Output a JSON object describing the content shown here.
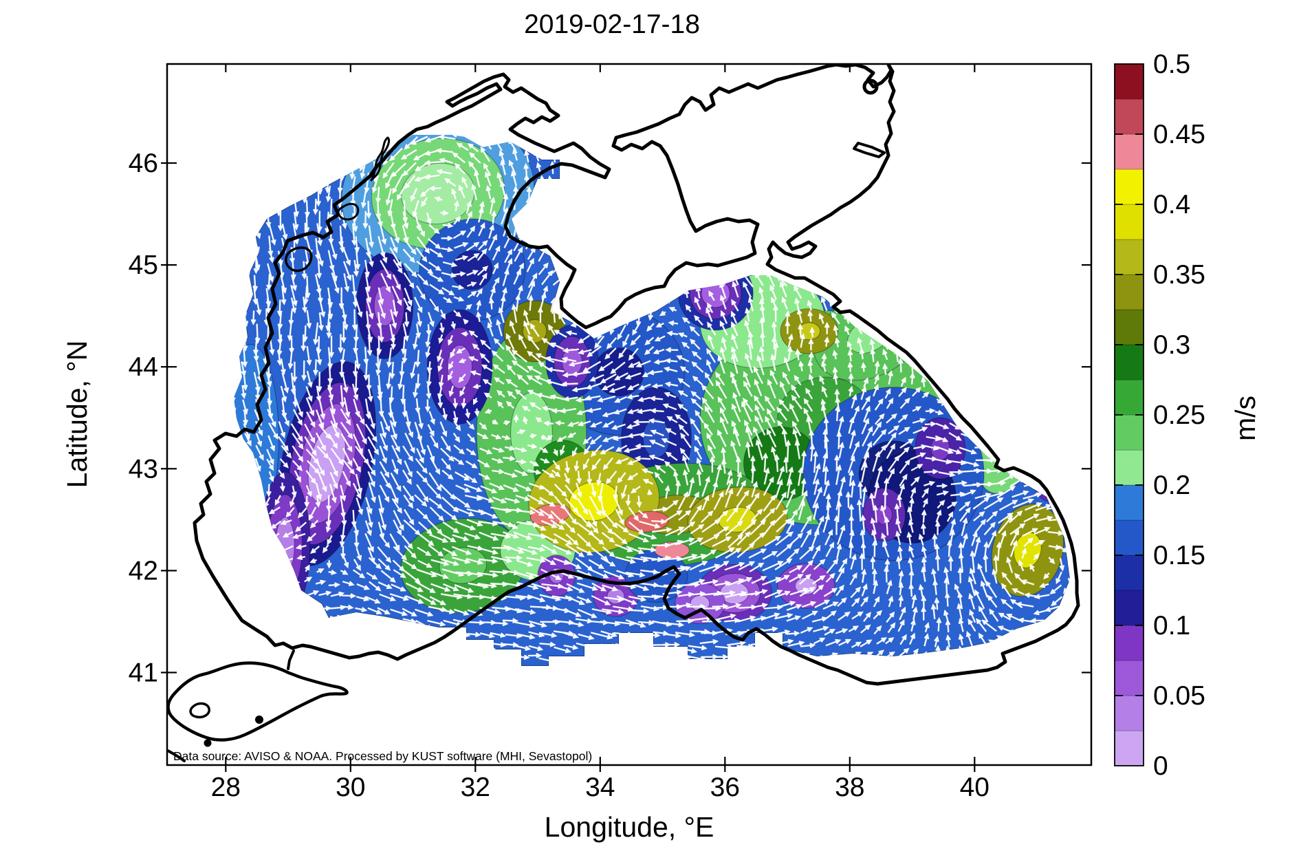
{
  "figure": {
    "title": "2019-02-17-18",
    "attribution": "Data source: AVISO & NOAA. Processed by KUST software (MHI, Sevastopol)"
  },
  "axes": {
    "x": {
      "label": "Longitude, °E",
      "ticks": [
        28,
        30,
        32,
        34,
        36,
        38,
        40
      ],
      "range": [
        27.06,
        41.87
      ]
    },
    "y": {
      "label": "Latitude, °N",
      "ticks": [
        41,
        42,
        43,
        44,
        45,
        46
      ],
      "range": [
        40.09,
        46.97
      ]
    }
  },
  "colorbar": {
    "unit": "m/s",
    "min": 0,
    "max": 0.5,
    "ticks": [
      0,
      0.05,
      0.1,
      0.15,
      0.2,
      0.25,
      0.3,
      0.35,
      0.4,
      0.45,
      0.5
    ],
    "segment_colors_bottom_to_top": [
      "#cda6f2",
      "#b57fe8",
      "#9e58da",
      "#7f36c4",
      "#221e98",
      "#1c2fa6",
      "#2458c8",
      "#2e7ad8",
      "#90e890",
      "#62cc62",
      "#36a836",
      "#157a15",
      "#5f7a08",
      "#8f9410",
      "#b4b818",
      "#e0e000",
      "#f2f200",
      "#ee8899",
      "#c04858",
      "#8c1020"
    ]
  },
  "chart_data": {
    "type": "heatmap",
    "subtype": "geographic-vector-field",
    "title": "2019-02-17-18",
    "region": "Black Sea",
    "field": "sea surface current speed",
    "unit": "m/s",
    "xlabel": "Longitude, °E",
    "ylabel": "Latitude, °N",
    "xlim": [
      27.06,
      41.87
    ],
    "ylim": [
      40.09,
      46.97
    ],
    "xticks": [
      28,
      30,
      32,
      34,
      36,
      38,
      40
    ],
    "yticks": [
      41,
      42,
      43,
      44,
      45,
      46
    ],
    "colorbar_range": [
      0,
      0.5
    ],
    "colorbar_ticks": [
      0,
      0.05,
      0.1,
      0.15,
      0.2,
      0.25,
      0.3,
      0.35,
      0.4,
      0.45,
      0.5
    ],
    "grid": false,
    "legend_position": "right-colorbar",
    "overlay": "dense white current-direction arrows (quiver) over filled speed contours",
    "no_data_regions": [
      "Sea of Azov",
      "narrow coastal margin",
      "Sea of Marmara"
    ],
    "base_speed_color": "#2a62cf",
    "speed_features": [
      {
        "lon": 31.4,
        "lat": 45.7,
        "rx": 1.55,
        "ry": 0.78,
        "rot": -10,
        "colors": [
          "#4f9fe0",
          "#77d877",
          "#a4eca4"
        ]
      },
      {
        "lon": 28.4,
        "lat": 43.3,
        "rx": 0.45,
        "ry": 0.92,
        "rot": 0,
        "colors": [
          "#2e7ad8"
        ]
      },
      {
        "lon": 31.95,
        "lat": 44.95,
        "rx": 0.85,
        "ry": 0.5,
        "rot": -15,
        "colors": [
          "#2458c8",
          "#1a2496"
        ]
      },
      {
        "lon": 34.3,
        "lat": 43.95,
        "rx": 1.05,
        "ry": 0.62,
        "rot": 0,
        "colors": [
          "#2458c8",
          "#161e8e"
        ]
      },
      {
        "lon": 34.9,
        "lat": 43.3,
        "rx": 0.56,
        "ry": 0.5,
        "rot": 0,
        "colors": [
          "#1a2496",
          "#2a52c4"
        ]
      },
      {
        "lon": 32.9,
        "lat": 43.35,
        "rx": 0.88,
        "ry": 1.05,
        "rot": 0,
        "colors": [
          "#59c259",
          "#8ce88c"
        ]
      },
      {
        "lon": 37.6,
        "lat": 43.5,
        "rx": 2.0,
        "ry": 1.05,
        "rot": -5,
        "colors": [
          "#59c259",
          "#3aa43a"
        ]
      },
      {
        "lon": 36.6,
        "lat": 44.45,
        "rx": 1.0,
        "ry": 0.46,
        "rot": -8,
        "colors": [
          "#8ce88c"
        ]
      },
      {
        "lon": 38.3,
        "lat": 44.3,
        "rx": 0.92,
        "ry": 0.4,
        "rot": -25,
        "colors": [
          "#59c259",
          "#8ce88c"
        ]
      },
      {
        "lon": 40.7,
        "lat": 43.5,
        "rx": 0.55,
        "ry": 0.78,
        "rot": 20,
        "colors": [
          "#77d877",
          "#a4eca4"
        ]
      },
      {
        "lon": 36.9,
        "lat": 43.05,
        "rx": 0.6,
        "ry": 0.36,
        "rot": 10,
        "colors": [
          "#157a15"
        ]
      },
      {
        "lon": 33.4,
        "lat": 42.98,
        "rx": 0.46,
        "ry": 0.3,
        "rot": 0,
        "colors": [
          "#1f8c1f"
        ]
      },
      {
        "lon": 38.7,
        "lat": 42.95,
        "rx": 1.45,
        "ry": 0.85,
        "rot": 0,
        "colors": [
          "#2458c8",
          "#14207e"
        ]
      },
      {
        "lon": 39.0,
        "lat": 42.72,
        "rx": 0.7,
        "ry": 0.45,
        "rot": 0,
        "colors": [
          "#10187a"
        ]
      },
      {
        "lon": 31.8,
        "lat": 42.05,
        "rx": 1.0,
        "ry": 0.46,
        "rot": -8,
        "colors": [
          "#3aa43a",
          "#62cc62"
        ]
      },
      {
        "lon": 33.0,
        "lat": 42.2,
        "rx": 0.6,
        "ry": 0.3,
        "rot": 0,
        "colors": [
          "#8ce88c"
        ]
      },
      {
        "lon": 35.2,
        "lat": 42.55,
        "rx": 1.5,
        "ry": 0.5,
        "rot": -5,
        "colors": [
          "#3aa43a",
          "#8f9410"
        ]
      },
      {
        "lon": 33.9,
        "lat": 42.68,
        "rx": 1.05,
        "ry": 0.5,
        "rot": -8,
        "colors": [
          "#b4b818",
          "#eeee00"
        ]
      },
      {
        "lon": 36.2,
        "lat": 42.5,
        "rx": 0.8,
        "ry": 0.32,
        "rot": -5,
        "colors": [
          "#9f9f14",
          "#dada10"
        ]
      },
      {
        "lon": 40.85,
        "lat": 42.2,
        "rx": 0.56,
        "ry": 0.46,
        "rot": 15,
        "colors": [
          "#8f9410",
          "#e3e300"
        ]
      },
      {
        "lon": 37.35,
        "lat": 44.35,
        "rx": 0.46,
        "ry": 0.22,
        "rot": 0,
        "colors": [
          "#8f9410",
          "#c8c818"
        ]
      },
      {
        "lon": 32.95,
        "lat": 44.35,
        "rx": 0.5,
        "ry": 0.3,
        "rot": 0,
        "colors": [
          "#6f7a08",
          "#a8a814"
        ]
      },
      {
        "lon": 30.55,
        "lat": 44.6,
        "rx": 0.45,
        "ry": 0.52,
        "rot": 0,
        "colors": [
          "#1a1a8f",
          "#6a2fb8",
          "#9e58da"
        ]
      },
      {
        "lon": 29.62,
        "lat": 43.05,
        "rx": 0.72,
        "ry": 1.02,
        "rot": 12,
        "colors": [
          "#1a1a8f",
          "#6a2fb8",
          "#9a52d6",
          "#c9a0f2"
        ]
      },
      {
        "lon": 31.75,
        "lat": 44.0,
        "rx": 0.52,
        "ry": 0.56,
        "rot": 0,
        "colors": [
          "#1c1c96",
          "#6a2fb8",
          "#a45fe0"
        ]
      },
      {
        "lon": 28.95,
        "lat": 42.25,
        "rx": 0.4,
        "ry": 0.72,
        "rot": 0,
        "colors": [
          "#3a1f9e",
          "#7f3ac8",
          "#b57fe8"
        ]
      },
      {
        "lon": 33.55,
        "lat": 44.05,
        "rx": 0.42,
        "ry": 0.36,
        "rot": 0,
        "colors": [
          "#1c2fa6",
          "#6a2fb8",
          "#9e58da"
        ]
      },
      {
        "lon": 35.85,
        "lat": 44.72,
        "rx": 0.6,
        "ry": 0.36,
        "rot": -8,
        "colors": [
          "#1c2fa6",
          "#6a2fb8",
          "#a45fe0"
        ]
      },
      {
        "lon": 38.55,
        "lat": 42.55,
        "rx": 0.34,
        "ry": 0.26,
        "rot": 0,
        "colors": [
          "#5f2bb0",
          "#8a42cc"
        ]
      },
      {
        "lon": 39.45,
        "lat": 43.2,
        "rx": 0.4,
        "ry": 0.3,
        "rot": 0,
        "colors": [
          "#4a23a8",
          "#7a3ac4"
        ]
      },
      {
        "lon": 41.2,
        "lat": 43.1,
        "rx": 0.34,
        "ry": 0.42,
        "rot": 0,
        "colors": [
          "#5f2bb0",
          "#9050d8"
        ]
      },
      {
        "lon": 36.15,
        "lat": 41.78,
        "rx": 0.6,
        "ry": 0.28,
        "rot": 0,
        "colors": [
          "#6a2fb8",
          "#9a52d6",
          "#c9a0f2"
        ]
      },
      {
        "lon": 34.25,
        "lat": 41.75,
        "rx": 0.36,
        "ry": 0.2,
        "rot": 0,
        "colors": [
          "#7f3ac8",
          "#b57fe8"
        ]
      },
      {
        "lon": 33.3,
        "lat": 41.95,
        "rx": 0.3,
        "ry": 0.2,
        "rot": 0,
        "colors": [
          "#7f3ac8",
          "#a96ae4"
        ]
      },
      {
        "lon": 34.9,
        "lat": 41.95,
        "rx": 0.5,
        "ry": 0.26,
        "rot": 0,
        "colors": [
          "#2458c8"
        ]
      },
      {
        "lon": 37.3,
        "lat": 41.85,
        "rx": 0.46,
        "ry": 0.22,
        "rot": 0,
        "colors": [
          "#8a42cc",
          "#c9a0f2"
        ]
      },
      {
        "lon": 35.6,
        "lat": 41.68,
        "rx": 0.4,
        "ry": 0.2,
        "rot": 0,
        "colors": [
          "#9050d8",
          "#c9a0f2"
        ]
      },
      {
        "lon": 33.2,
        "lat": 42.55,
        "rx": 0.32,
        "ry": 0.1,
        "rot": -10,
        "colors": [
          "#e87878"
        ]
      },
      {
        "lon": 34.75,
        "lat": 42.48,
        "rx": 0.35,
        "ry": 0.1,
        "rot": -5,
        "colors": [
          "#e06868"
        ]
      },
      {
        "lon": 35.15,
        "lat": 42.2,
        "rx": 0.28,
        "ry": 0.08,
        "rot": 0,
        "colors": [
          "#ee8899"
        ]
      }
    ],
    "flow_vortices": [
      {
        "lon": 31.66,
        "lat": 43.28,
        "r": 2.87,
        "spin": 1.0
      },
      {
        "lon": 36.61,
        "lat": 43.35,
        "r": 3.3,
        "spin": 1.0
      },
      {
        "lon": 32.1,
        "lat": 46.8,
        "r": 4.6,
        "spin": 0.9
      },
      {
        "lon": 33.53,
        "lat": 44.36,
        "r": 1.05,
        "spin": -0.85
      },
      {
        "lon": 40.91,
        "lat": 42.06,
        "r": 1.27,
        "spin": -0.9
      },
      {
        "lon": 37.05,
        "lat": 43.85,
        "r": 1.1,
        "spin": -0.75
      },
      {
        "lon": 29.67,
        "lat": 42.87,
        "r": 1.05,
        "spin": -0.6
      },
      {
        "lon": 34.74,
        "lat": 42.5,
        "r": 1.27,
        "spin": 1.25
      },
      {
        "lon": 38.6,
        "lat": 42.87,
        "r": 1.38,
        "spin": -0.8
      },
      {
        "lon": 31.21,
        "lat": 45.57,
        "r": 1.27,
        "spin": 0.95
      },
      {
        "lon": 28.68,
        "lat": 41.86,
        "r": 1.1,
        "spin": 0.75
      },
      {
        "lon": 40.36,
        "lat": 43.48,
        "r": 1.05,
        "spin": 0.8
      },
      {
        "lon": 35.18,
        "lat": 45.37,
        "r": 1.0,
        "spin": 0.7
      }
    ]
  }
}
